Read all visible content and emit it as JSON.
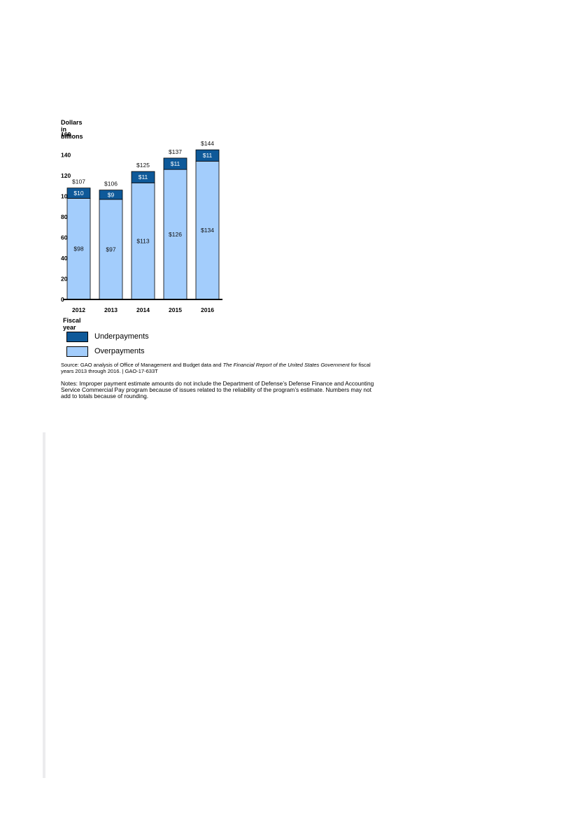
{
  "chart_data": {
    "type": "bar",
    "stacked": true,
    "categories": [
      "2012",
      "2013",
      "2014",
      "2015",
      "2016"
    ],
    "series": [
      {
        "name": "Overpayments",
        "values": [
          98,
          97,
          113,
          126,
          134
        ],
        "labels": [
          "$98",
          "$97",
          "$113",
          "$126",
          "$134"
        ],
        "color": "#a3cdfc"
      },
      {
        "name": "Underpayments",
        "values": [
          10,
          9,
          11,
          11,
          11
        ],
        "labels": [
          "$10",
          "$9",
          "$11",
          "$11",
          "$11"
        ],
        "color": "#0e5999"
      }
    ],
    "totals": [
      107,
      106,
      125,
      137,
      144
    ],
    "total_labels": [
      "$107",
      "$106",
      "$125",
      "$137",
      "$144"
    ],
    "ylabel": "Dollars in billions",
    "xlabel": "Fiscal year",
    "ylim": [
      0,
      160
    ],
    "yticks": [
      0,
      20,
      40,
      60,
      80,
      100,
      120,
      140,
      160
    ],
    "grid": false,
    "legend_position": "bottom-left"
  },
  "legend": {
    "items": [
      {
        "label": "Underpayments",
        "color": "#0e5999"
      },
      {
        "label": "Overpayments",
        "color": "#a3cdfc"
      }
    ]
  },
  "source": {
    "prefix": "Source: GAO analysis of Office of Management and Budget data and ",
    "italic": "The Financial Report of the United States Government",
    "suffix": " for fiscal years 2013 through 2016.  |  GAO-17-633T"
  },
  "notes": "Notes: Improper payment estimate amounts do not include the Department of Defense’s Defense Finance and Accounting Service Commercial Pay program because of issues related to the reliability of the program’s estimate. Numbers may not add to totals because of rounding."
}
